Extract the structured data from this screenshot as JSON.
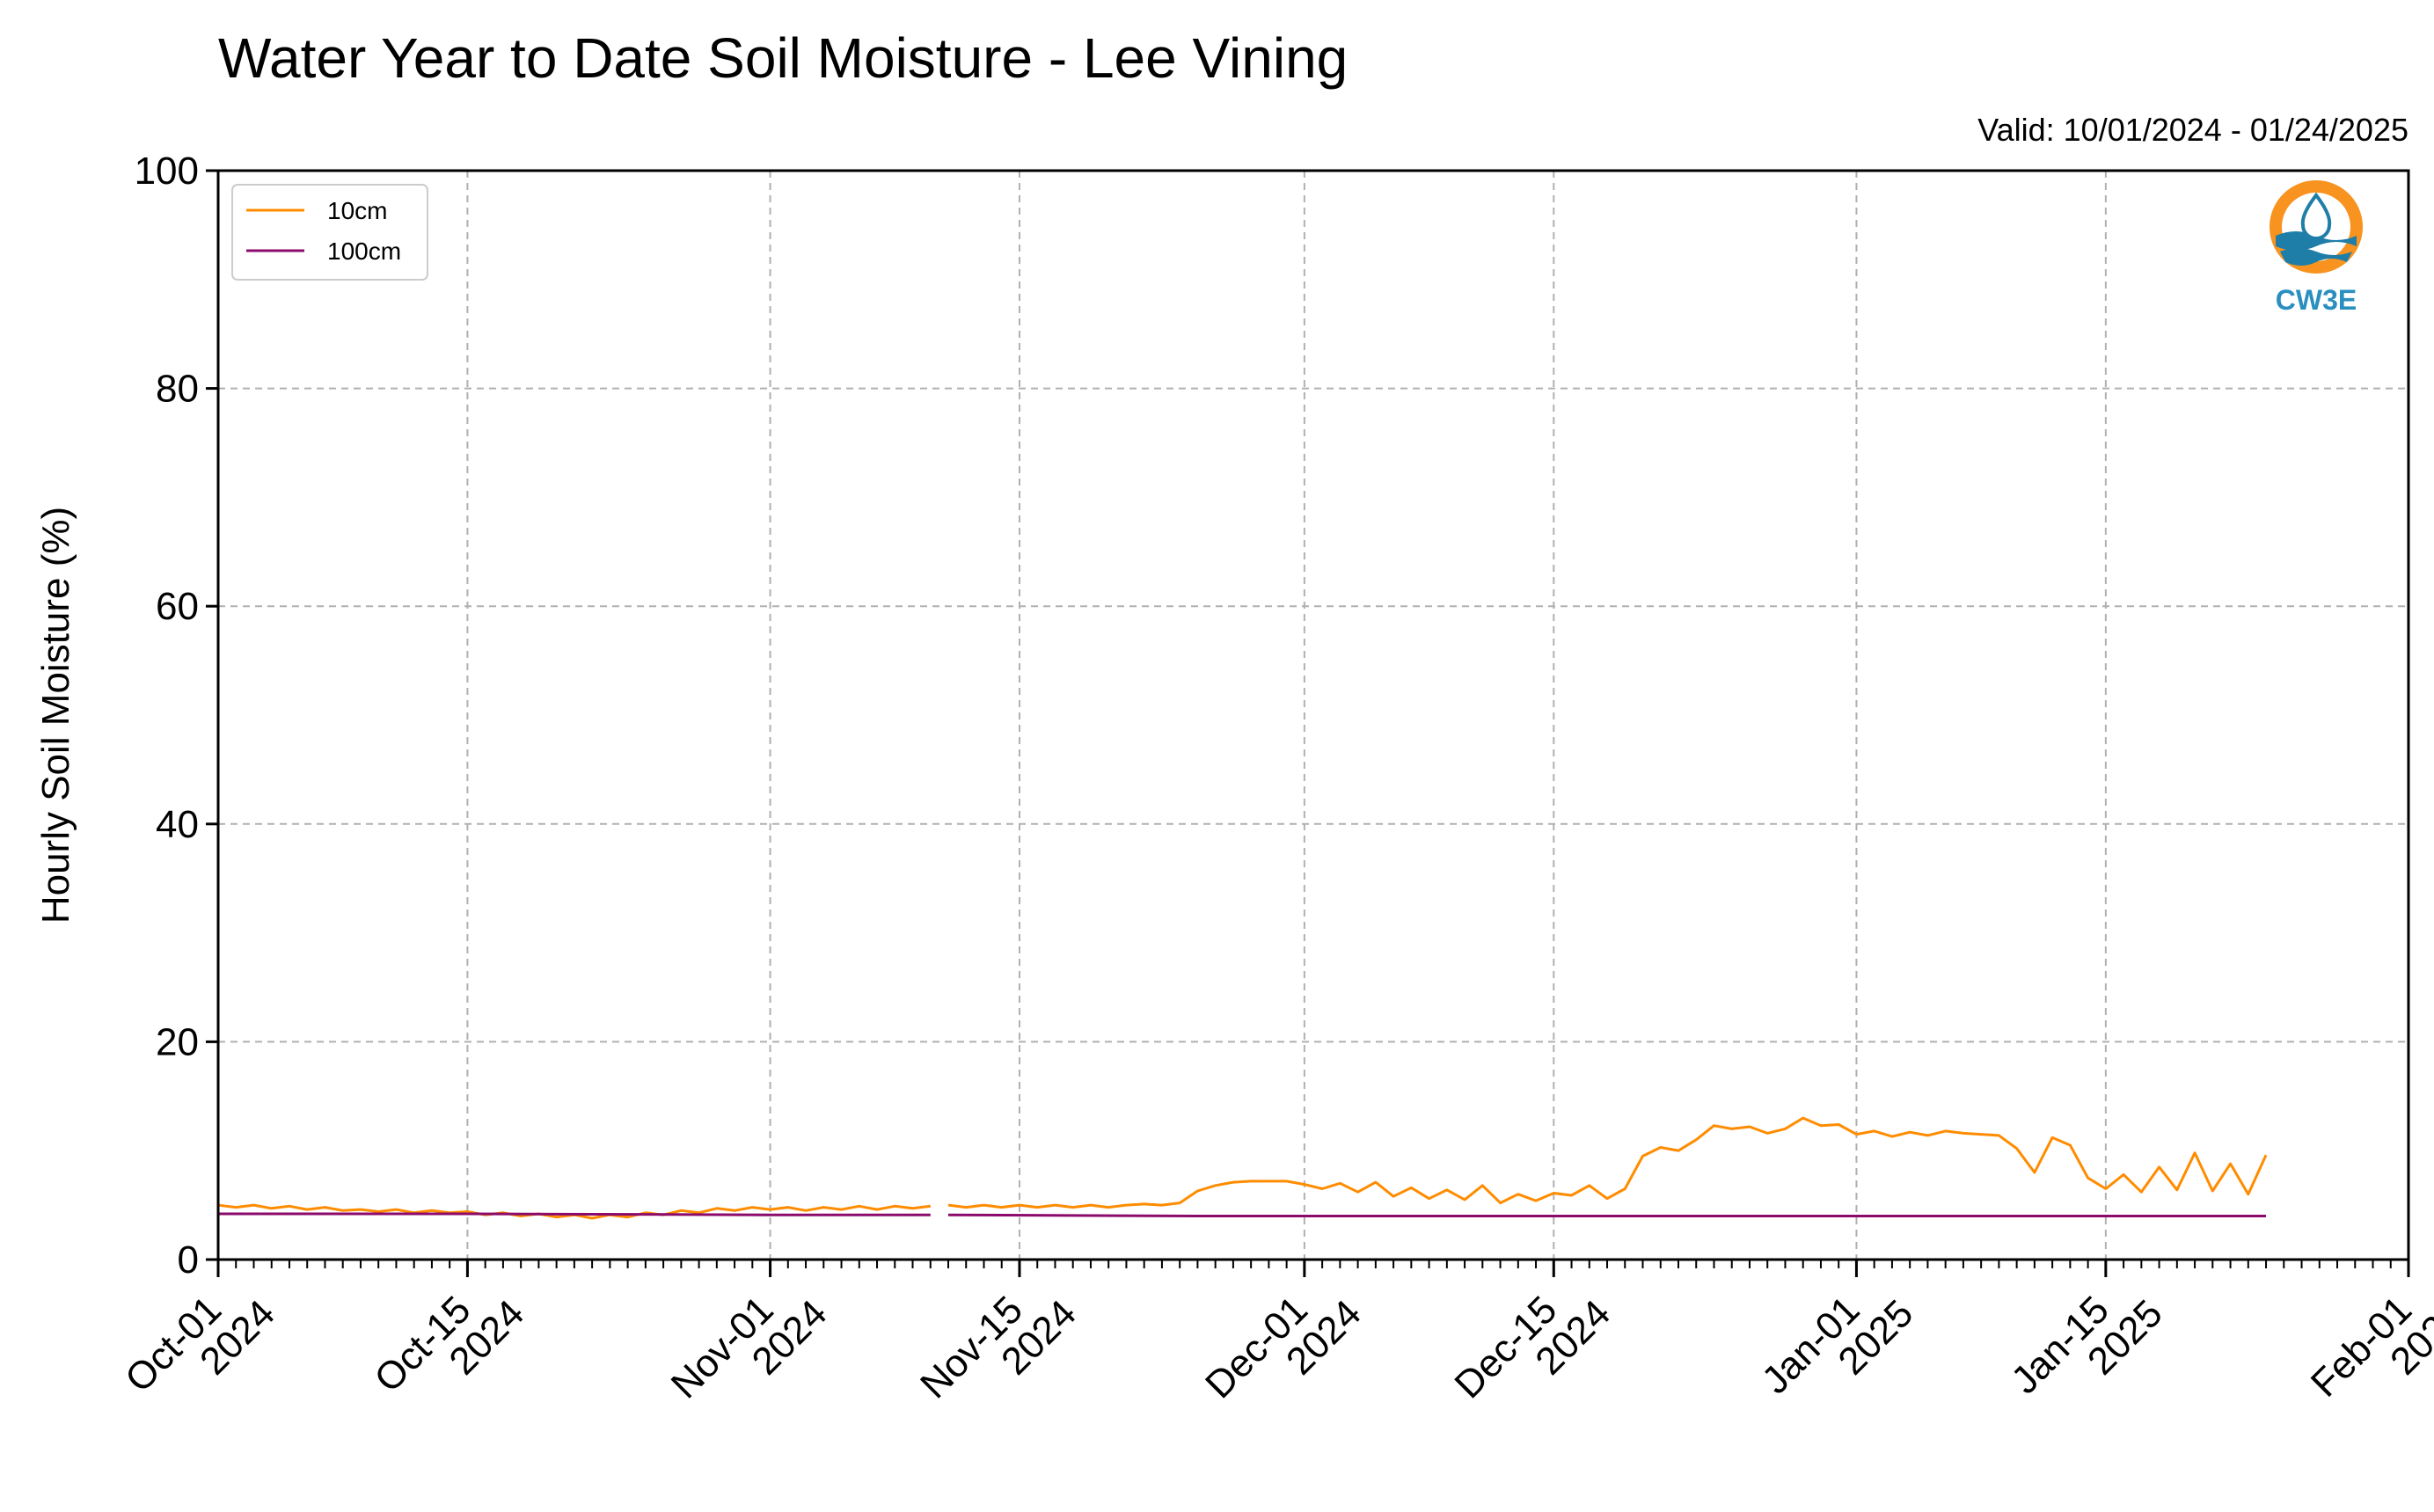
{
  "chart_data": {
    "type": "line",
    "title": "Water Year to Date Soil Moisture - Lee Vining",
    "subtitle": "Valid: 10/01/2024 - 01/24/2025",
    "xlabel": "",
    "ylabel": "Hourly Soil Moisture (%)",
    "xlim": [
      "2024-10-01",
      "2025-02-01"
    ],
    "ylim": [
      0,
      100
    ],
    "yticks": [
      0,
      20,
      40,
      60,
      80,
      100
    ],
    "xticks": [
      {
        "date": "2024-10-01",
        "line1": "Oct-01",
        "line2": "2024"
      },
      {
        "date": "2024-10-15",
        "line1": "Oct-15",
        "line2": "2024"
      },
      {
        "date": "2024-11-01",
        "line1": "Nov-01",
        "line2": "2024"
      },
      {
        "date": "2024-11-15",
        "line1": "Nov-15",
        "line2": "2024"
      },
      {
        "date": "2024-12-01",
        "line1": "Dec-01",
        "line2": "2024"
      },
      {
        "date": "2024-12-15",
        "line1": "Dec-15",
        "line2": "2024"
      },
      {
        "date": "2025-01-01",
        "line1": "Jan-01",
        "line2": "2025"
      },
      {
        "date": "2025-01-15",
        "line1": "Jan-15",
        "line2": "2025"
      },
      {
        "date": "2025-02-01",
        "line1": "Feb-01",
        "line2": "2025"
      }
    ],
    "grid": true,
    "legend_position": "top-left",
    "series": [
      {
        "name": "10cm",
        "color": "#ff8c00",
        "points": [
          [
            "2024-10-01",
            5.0
          ],
          [
            "2024-10-02",
            4.8
          ],
          [
            "2024-10-03",
            5.0
          ],
          [
            "2024-10-04",
            4.7
          ],
          [
            "2024-10-05",
            4.9
          ],
          [
            "2024-10-06",
            4.6
          ],
          [
            "2024-10-07",
            4.8
          ],
          [
            "2024-10-08",
            4.5
          ],
          [
            "2024-10-09",
            4.6
          ],
          [
            "2024-10-10",
            4.4
          ],
          [
            "2024-10-11",
            4.6
          ],
          [
            "2024-10-12",
            4.3
          ],
          [
            "2024-10-13",
            4.5
          ],
          [
            "2024-10-14",
            4.3
          ],
          [
            "2024-10-15",
            4.4
          ],
          [
            "2024-10-16",
            4.1
          ],
          [
            "2024-10-17",
            4.3
          ],
          [
            "2024-10-18",
            4.0
          ],
          [
            "2024-10-19",
            4.2
          ],
          [
            "2024-10-20",
            3.9
          ],
          [
            "2024-10-21",
            4.1
          ],
          [
            "2024-10-22",
            3.8
          ],
          [
            "2024-10-23",
            4.1
          ],
          [
            "2024-10-24",
            3.9
          ],
          [
            "2024-10-25",
            4.3
          ],
          [
            "2024-10-26",
            4.1
          ],
          [
            "2024-10-27",
            4.5
          ],
          [
            "2024-10-28",
            4.3
          ],
          [
            "2024-10-29",
            4.7
          ],
          [
            "2024-10-30",
            4.5
          ],
          [
            "2024-10-31",
            4.8
          ],
          [
            "2024-11-01",
            4.6
          ],
          [
            "2024-11-02",
            4.8
          ],
          [
            "2024-11-03",
            4.5
          ],
          [
            "2024-11-04",
            4.8
          ],
          [
            "2024-11-05",
            4.6
          ],
          [
            "2024-11-06",
            4.9
          ],
          [
            "2024-11-07",
            4.6
          ],
          [
            "2024-11-08",
            4.9
          ],
          [
            "2024-11-09",
            4.7
          ],
          [
            "2024-11-10",
            4.9
          ],
          null,
          [
            "2024-11-11",
            5.0
          ],
          [
            "2024-11-12",
            4.8
          ],
          [
            "2024-11-13",
            5.0
          ],
          [
            "2024-11-14",
            4.8
          ],
          [
            "2024-11-15",
            5.0
          ],
          [
            "2024-11-16",
            4.8
          ],
          [
            "2024-11-17",
            5.0
          ],
          [
            "2024-11-18",
            4.8
          ],
          [
            "2024-11-19",
            5.0
          ],
          [
            "2024-11-20",
            4.8
          ],
          [
            "2024-11-21",
            5.0
          ],
          [
            "2024-11-22",
            5.1
          ],
          [
            "2024-11-23",
            5.0
          ],
          [
            "2024-11-24",
            5.2
          ],
          [
            "2024-11-25",
            6.3
          ],
          [
            "2024-11-26",
            6.8
          ],
          [
            "2024-11-27",
            7.1
          ],
          [
            "2024-11-28",
            7.2
          ],
          [
            "2024-11-29",
            7.2
          ],
          [
            "2024-11-30",
            7.2
          ],
          [
            "2024-12-01",
            6.9
          ],
          [
            "2024-12-02",
            6.5
          ],
          [
            "2024-12-03",
            7.0
          ],
          [
            "2024-12-04",
            6.2
          ],
          [
            "2024-12-05",
            7.1
          ],
          [
            "2024-12-06",
            5.8
          ],
          [
            "2024-12-07",
            6.6
          ],
          [
            "2024-12-08",
            5.6
          ],
          [
            "2024-12-09",
            6.4
          ],
          [
            "2024-12-10",
            5.5
          ],
          [
            "2024-12-11",
            6.8
          ],
          [
            "2024-12-12",
            5.2
          ],
          [
            "2024-12-13",
            6.0
          ],
          [
            "2024-12-14",
            5.4
          ],
          [
            "2024-12-15",
            6.1
          ],
          [
            "2024-12-16",
            5.9
          ],
          [
            "2024-12-17",
            6.8
          ],
          [
            "2024-12-18",
            5.6
          ],
          [
            "2024-12-19",
            6.5
          ],
          [
            "2024-12-20",
            9.5
          ],
          [
            "2024-12-21",
            10.3
          ],
          [
            "2024-12-22",
            10.0
          ],
          [
            "2024-12-23",
            11.0
          ],
          [
            "2024-12-24",
            12.3
          ],
          [
            "2024-12-25",
            12.0
          ],
          [
            "2024-12-26",
            12.2
          ],
          [
            "2024-12-27",
            11.6
          ],
          [
            "2024-12-28",
            12.0
          ],
          [
            "2024-12-29",
            13.0
          ],
          [
            "2024-12-30",
            12.3
          ],
          [
            "2024-12-31",
            12.4
          ],
          [
            "2025-01-01",
            11.5
          ],
          [
            "2025-01-02",
            11.8
          ],
          [
            "2025-01-03",
            11.3
          ],
          [
            "2025-01-04",
            11.7
          ],
          [
            "2025-01-05",
            11.4
          ],
          [
            "2025-01-06",
            11.8
          ],
          [
            "2025-01-07",
            11.6
          ],
          [
            "2025-01-08",
            11.5
          ],
          [
            "2025-01-09",
            11.4
          ],
          [
            "2025-01-10",
            10.2
          ],
          [
            "2025-01-11",
            8.0
          ],
          [
            "2025-01-12",
            11.2
          ],
          [
            "2025-01-13",
            10.5
          ],
          [
            "2025-01-14",
            7.5
          ],
          [
            "2025-01-15",
            6.5
          ],
          [
            "2025-01-16",
            7.8
          ],
          [
            "2025-01-17",
            6.2
          ],
          [
            "2025-01-18",
            8.5
          ],
          [
            "2025-01-19",
            6.4
          ],
          [
            "2025-01-20",
            9.8
          ],
          [
            "2025-01-21",
            6.3
          ],
          [
            "2025-01-22",
            8.8
          ],
          [
            "2025-01-23",
            6.0
          ],
          [
            "2025-01-24",
            9.6
          ]
        ]
      },
      {
        "name": "100cm",
        "color": "#8b0a6b",
        "points": [
          [
            "2024-10-01",
            4.2
          ],
          [
            "2024-10-15",
            4.2
          ],
          [
            "2024-11-01",
            4.1
          ],
          [
            "2024-11-10",
            4.1
          ],
          null,
          [
            "2024-11-11",
            4.1
          ],
          [
            "2024-11-25",
            4.0
          ],
          [
            "2024-12-10",
            4.0
          ],
          [
            "2024-12-25",
            4.0
          ],
          [
            "2025-01-10",
            4.0
          ],
          [
            "2025-01-24",
            4.0
          ]
        ]
      }
    ]
  },
  "logo": {
    "text": "CW3E",
    "ring_color": "#f7931e",
    "wave_color": "#1f7ea8"
  }
}
